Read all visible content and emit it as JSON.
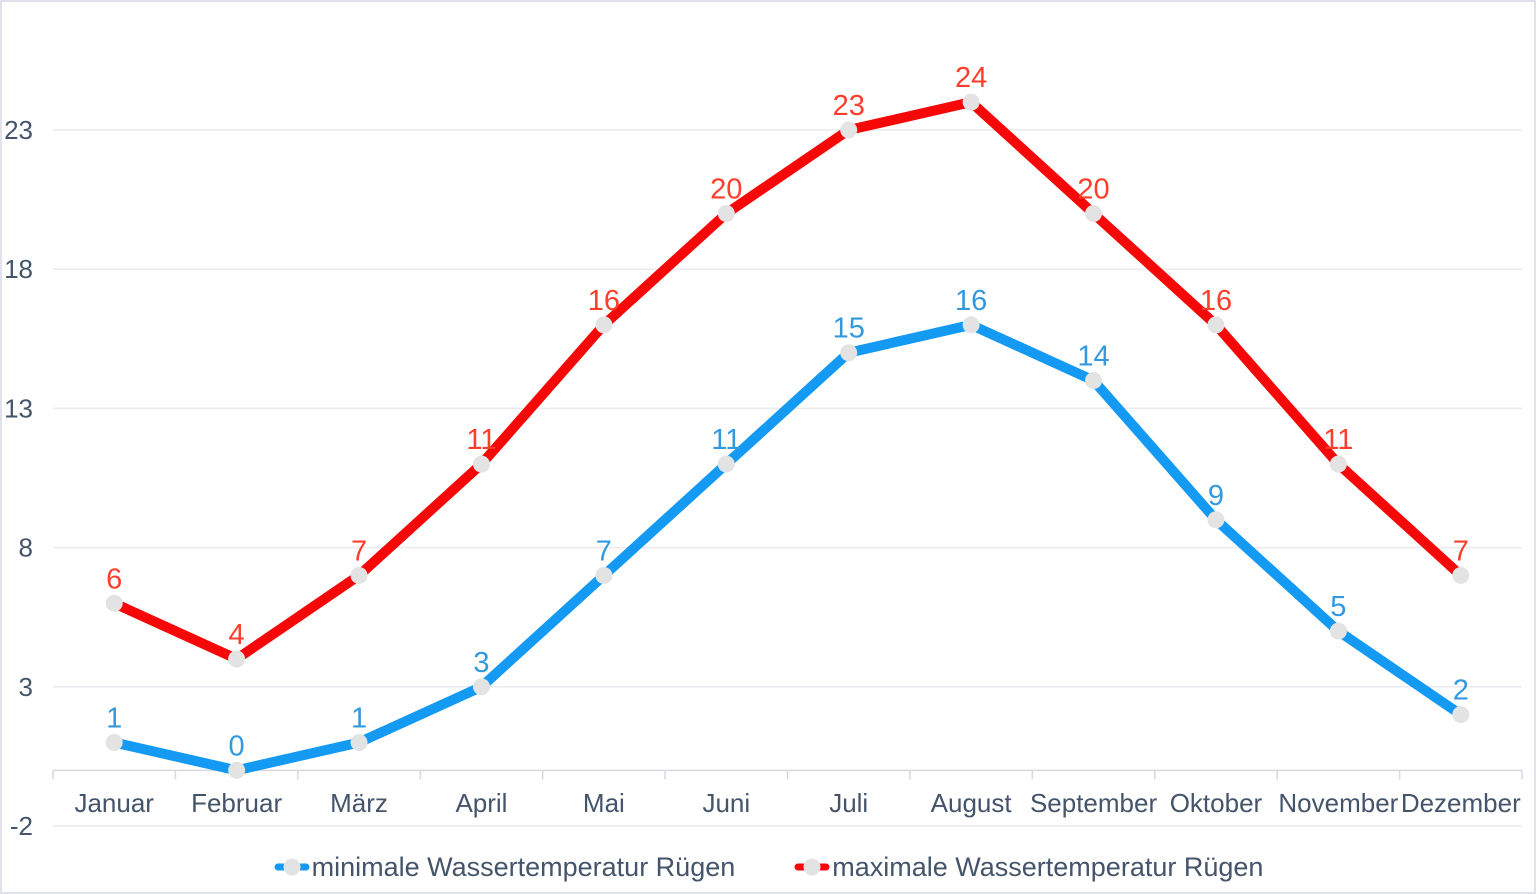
{
  "chart_data": {
    "type": "line",
    "categories": [
      "Januar",
      "Februar",
      "März",
      "April",
      "Mai",
      "Juni",
      "Juli",
      "August",
      "September",
      "Oktober",
      "November",
      "Dezember"
    ],
    "series": [
      {
        "name": "minimale Wassertemperatur Rügen",
        "values": [
          1,
          0,
          1,
          3,
          7,
          11,
          15,
          16,
          14,
          9,
          5,
          2
        ],
        "color": "#149AF2",
        "label_color": "#3399DF"
      },
      {
        "name": "maximale Wassertemperatur Rügen",
        "values": [
          6,
          4,
          7,
          11,
          16,
          20,
          23,
          24,
          20,
          16,
          11,
          7
        ],
        "color": "#F70808",
        "label_color": "#FF3D2B"
      }
    ],
    "y_axis": {
      "ticks": [
        23,
        18,
        13,
        8,
        3,
        -2
      ],
      "min": -2,
      "max": 24,
      "crosses_at": 0
    },
    "xlabel": "",
    "ylabel": "",
    "title": "",
    "grid": true,
    "legend_position": "bottom",
    "colors": {
      "grid": "#EAEAEF",
      "axis": "#D8D8DE",
      "border": "#E1E1EC",
      "axis_text": "#44546A",
      "marker": "#E3E3E3",
      "background": "#FFFFFF"
    }
  }
}
